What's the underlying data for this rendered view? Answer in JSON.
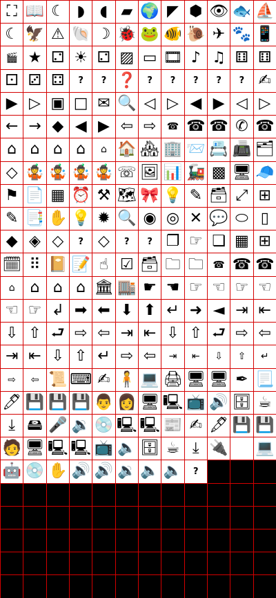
{
  "sheet": {
    "columns": 12,
    "rows": 26,
    "colors": {
      "grid_line": "#d40000",
      "cell_fill": "#ffffff",
      "empty_fill": "#000000",
      "icon_ink": "#000000"
    },
    "cells": [
      {
        "icon": "globe-maze-icon",
        "g": "⛶"
      },
      {
        "icon": "book-icon",
        "g": "📖"
      },
      {
        "icon": "moon-star-icon",
        "g": "☾"
      },
      {
        "icon": "south-america-icon",
        "g": "◗"
      },
      {
        "icon": "africa-icon",
        "g": "◖"
      },
      {
        "icon": "australia-icon",
        "g": "▰"
      },
      {
        "icon": "earth-globe-icon",
        "g": "🌍"
      },
      {
        "icon": "north-america-icon",
        "g": "◤"
      },
      {
        "icon": "europe-map-icon",
        "g": "⬢"
      },
      {
        "icon": "eye-icon",
        "g": "👁"
      },
      {
        "icon": "fish-hook-icon",
        "g": "🐟"
      },
      {
        "icon": "sailboat-icon",
        "g": "⛵"
      },
      {
        "icon": "night-sky-icon",
        "g": "☾"
      },
      {
        "icon": "eagle-icon",
        "g": "🦅"
      },
      {
        "icon": "warning-triangle-icon",
        "g": "⚠"
      },
      {
        "icon": "shell-icon",
        "g": "🐚"
      },
      {
        "icon": "moon-box-icon",
        "g": "☽"
      },
      {
        "icon": "bug-icon",
        "g": "🐞"
      },
      {
        "icon": "frog-icon",
        "g": "🐸"
      },
      {
        "icon": "fish-icon",
        "g": "🐠"
      },
      {
        "icon": "snail-icon",
        "g": "🐌"
      },
      {
        "icon": "jet-plane-icon",
        "g": "✈"
      },
      {
        "icon": "paw-print-icon",
        "g": "🐾"
      },
      {
        "icon": "phone-device-icon",
        "g": "📱"
      },
      {
        "icon": "show-clapper-icon",
        "g": "🎬",
        "cls": "small"
      },
      {
        "icon": "starfish-icon",
        "g": "★"
      },
      {
        "icon": "die-face-two-icon",
        "g": "⚁"
      },
      {
        "icon": "sun-face-icon",
        "g": "☀"
      },
      {
        "icon": "die-face-two-alt-icon",
        "g": "⚁"
      },
      {
        "icon": "die-shaded-icon",
        "g": "▨"
      },
      {
        "icon": "pill-button-icon",
        "g": "▭"
      },
      {
        "icon": "film-eye-icon",
        "g": "🎞"
      },
      {
        "icon": "music-box-icon",
        "g": "♪"
      },
      {
        "icon": "music-notes-icon",
        "g": "♫"
      },
      {
        "icon": "die-face-six-icon",
        "g": "⚅"
      },
      {
        "icon": "die-face-six-alt-icon",
        "g": "⚅"
      },
      {
        "icon": "die-face-one-icon",
        "g": "⚀"
      },
      {
        "icon": "die-face-three-icon",
        "g": "⚂"
      },
      {
        "icon": "die-face-four-icon",
        "g": "⚃"
      },
      {
        "icon": "question-circle-icon",
        "g": "?",
        "cls": "text-q"
      },
      {
        "icon": "help-book-icon",
        "g": "?",
        "cls": "text-q"
      },
      {
        "icon": "question-disc-icon",
        "g": "❓"
      },
      {
        "icon": "question-page-icon",
        "g": "?",
        "cls": "text-q"
      },
      {
        "icon": "question-stamp-icon",
        "g": "?",
        "cls": "text-q"
      },
      {
        "icon": "question-box-icon",
        "g": "?",
        "cls": "text-q"
      },
      {
        "icon": "question-box-bold-icon",
        "g": "?",
        "cls": "text-q"
      },
      {
        "icon": "question-script-icon",
        "g": "?",
        "cls": "text-q"
      },
      {
        "icon": "hand-writing-icon",
        "g": "✍"
      },
      {
        "icon": "play-filled-icon",
        "g": "▶"
      },
      {
        "icon": "play-outline-icon",
        "g": "▷"
      },
      {
        "icon": "small-square-icon",
        "g": "▣"
      },
      {
        "icon": "square-outline-icon",
        "g": "□"
      },
      {
        "icon": "envelope-x-icon",
        "g": "✉"
      },
      {
        "icon": "magnifier-list-icon",
        "g": "🔍"
      },
      {
        "icon": "arrow-left-thin-icon",
        "g": "◁"
      },
      {
        "icon": "arrow-right-thin-icon",
        "g": "▷"
      },
      {
        "icon": "triangle-left-icon",
        "g": "◀"
      },
      {
        "icon": "triangle-right-icon",
        "g": "▶"
      },
      {
        "icon": "triangle-left-outline-icon",
        "g": "◁"
      },
      {
        "icon": "triangle-right-outline-icon",
        "g": "▷"
      },
      {
        "icon": "arrow-left-icon",
        "g": "←"
      },
      {
        "icon": "arrow-right-icon",
        "g": "→"
      },
      {
        "icon": "question-diamond-small-icon",
        "g": "◆"
      },
      {
        "icon": "wedge-left-icon",
        "g": "◀"
      },
      {
        "icon": "wedge-right-icon",
        "g": "▶"
      },
      {
        "icon": "hollow-arrow-left-icon",
        "g": "⇦"
      },
      {
        "icon": "hollow-arrow-right-icon",
        "g": "⇨"
      },
      {
        "icon": "tiny-telephone-icon",
        "g": "☎",
        "cls": "small"
      },
      {
        "icon": "rotary-telephone-icon",
        "g": "☎"
      },
      {
        "icon": "desk-telephone-icon",
        "g": "☎"
      },
      {
        "icon": "phone-handset-icon",
        "g": "✆"
      },
      {
        "icon": "classic-telephone-icon",
        "g": "☎"
      },
      {
        "icon": "house-small-icon",
        "g": "⌂"
      },
      {
        "icon": "house-icon",
        "g": "⌂"
      },
      {
        "icon": "house-large-icon",
        "g": "⌂"
      },
      {
        "icon": "house-alt-icon",
        "g": "⌂"
      },
      {
        "icon": "house-tiny-icon",
        "g": "⌂",
        "cls": "small"
      },
      {
        "icon": "house-picture-icon",
        "g": "🏠"
      },
      {
        "icon": "house-windows-icon",
        "g": "🏘"
      },
      {
        "icon": "building-icon",
        "g": "🏢"
      },
      {
        "icon": "letter-stack-icon",
        "g": "📨"
      },
      {
        "icon": "rolodex-icon",
        "g": "📇"
      },
      {
        "icon": "fax-machine-icon",
        "g": "📠"
      },
      {
        "icon": "stacked-files-icon",
        "g": "🗂"
      },
      {
        "icon": "question-diamond-icon",
        "g": "◇"
      },
      {
        "icon": "juggler-icon",
        "g": "🤹"
      },
      {
        "icon": "juggler-two-icon",
        "g": "🤹"
      },
      {
        "icon": "juggler-three-icon",
        "g": "🤹"
      },
      {
        "icon": "juggler-four-icon",
        "g": "🤹"
      },
      {
        "icon": "phone-dial-icon",
        "g": "☏"
      },
      {
        "icon": "mountain-picture-icon",
        "g": "🖼"
      },
      {
        "icon": "bar-graph-icon",
        "g": "📊"
      },
      {
        "icon": "train-icon",
        "g": "🚂"
      },
      {
        "icon": "pattern-tile-icon",
        "g": "▩"
      },
      {
        "icon": "monitor-icon",
        "g": "🖥"
      },
      {
        "icon": "propeller-hat-icon",
        "g": "🧢"
      },
      {
        "icon": "crossing-sign-icon",
        "g": "⚑"
      },
      {
        "icon": "document-list-icon",
        "g": "📄"
      },
      {
        "icon": "checker-tile-icon",
        "g": "▦"
      },
      {
        "icon": "alarm-clock-icon",
        "g": "⏰"
      },
      {
        "icon": "tools-icon",
        "g": "⚒"
      },
      {
        "icon": "map-sheet-icon",
        "g": "🗺"
      },
      {
        "icon": "ribbon-folder-icon",
        "g": "🎀"
      },
      {
        "icon": "light-bulb-icon",
        "g": "💡"
      },
      {
        "icon": "drawing-tablet-icon",
        "g": "✎"
      },
      {
        "icon": "stacked-cards-icon",
        "g": "🗃"
      },
      {
        "icon": "expand-window-icon",
        "g": "⤢"
      },
      {
        "icon": "grid-window-icon",
        "g": "⊞"
      },
      {
        "icon": "pen-diamond-icon",
        "g": "✎"
      },
      {
        "icon": "papers-icon",
        "g": "📑"
      },
      {
        "icon": "hand-card-icon",
        "g": "✋"
      },
      {
        "icon": "bulb-square-icon",
        "g": "💡"
      },
      {
        "icon": "sun-burst-icon",
        "g": "✹"
      },
      {
        "icon": "magnifying-glass-icon",
        "g": "🔍"
      },
      {
        "icon": "eye-open-icon",
        "g": "◉"
      },
      {
        "icon": "eye-closed-icon",
        "g": "◎"
      },
      {
        "icon": "sparkle-x-icon",
        "g": "✕"
      },
      {
        "icon": "speech-bubble-icon",
        "g": "💬"
      },
      {
        "icon": "oval-bubble-icon",
        "g": "⬭"
      },
      {
        "icon": "blank-page-icon",
        "g": "▯"
      },
      {
        "icon": "question-diamond-black-icon",
        "g": "◆"
      },
      {
        "icon": "question-diamond-tile-icon",
        "g": "◈"
      },
      {
        "icon": "question-diamond-outline-icon",
        "g": "◇"
      },
      {
        "icon": "question-mark-icon",
        "g": "?",
        "cls": "text-q"
      },
      {
        "icon": "question-diamond-plain-icon",
        "g": "◇"
      },
      {
        "icon": "question-rounded-icon",
        "g": "?",
        "cls": "text-q"
      },
      {
        "icon": "question-square-icon",
        "g": "?",
        "cls": "text-q"
      },
      {
        "icon": "window-stack-icon",
        "g": "❐"
      },
      {
        "icon": "hand-pointing-page-icon",
        "g": "☞"
      },
      {
        "icon": "pages-stack-icon",
        "g": "❏"
      },
      {
        "icon": "spreadsheet-icon",
        "g": "▦"
      },
      {
        "icon": "window-grid-icon",
        "g": "⊞"
      },
      {
        "icon": "calendar-1988-icon",
        "g": "🗓"
      },
      {
        "icon": "dotted-grid-icon",
        "g": "⠿"
      },
      {
        "icon": "planner-book-icon",
        "g": "📔"
      },
      {
        "icon": "writing-pad-icon",
        "g": "📝"
      },
      {
        "icon": "hand-finger-icon",
        "g": "☝"
      },
      {
        "icon": "todo-list-icon",
        "g": "☑"
      },
      {
        "icon": "card-file-icon",
        "g": "🗃"
      },
      {
        "icon": "folder-tab-icon",
        "g": "🗀"
      },
      {
        "icon": "folder-tab-alt-icon",
        "g": "🗀"
      },
      {
        "icon": "phone-small-icon",
        "g": "☎",
        "cls": "small"
      },
      {
        "icon": "phone-medium-icon",
        "g": "☎"
      },
      {
        "icon": "phone-large-icon",
        "g": "☎"
      },
      {
        "icon": "hut-icon",
        "g": "⌂",
        "cls": "small"
      },
      {
        "icon": "cottage-icon",
        "g": "⌂"
      },
      {
        "icon": "home-icon",
        "g": "⌂"
      },
      {
        "icon": "mansion-icon",
        "g": "⌂"
      },
      {
        "icon": "bank-icon",
        "g": "🏛"
      },
      {
        "icon": "office-block-icon",
        "g": "🏬"
      },
      {
        "icon": "hand-point-right-icon",
        "g": "☛"
      },
      {
        "icon": "hand-point-left-icon",
        "g": "☚"
      },
      {
        "icon": "hand-point-right-two-icon",
        "g": "☞"
      },
      {
        "icon": "hand-point-left-two-icon",
        "g": "☜"
      },
      {
        "icon": "hand-point-right-three-icon",
        "g": "☞"
      },
      {
        "icon": "hand-point-left-three-icon",
        "g": "☜"
      },
      {
        "icon": "hand-point-left-small-icon",
        "g": "☜"
      },
      {
        "icon": "hand-point-right-small-icon",
        "g": "☞"
      },
      {
        "icon": "arrow-return-down-left-icon",
        "g": "↲"
      },
      {
        "icon": "bold-arrow-right-icon",
        "g": "➡"
      },
      {
        "icon": "bold-arrow-left-icon",
        "g": "⬅"
      },
      {
        "icon": "bold-arrow-down-icon",
        "g": "⬇"
      },
      {
        "icon": "bold-arrow-up-icon",
        "g": "⬆"
      },
      {
        "icon": "arrow-return-icon",
        "g": "↵"
      },
      {
        "icon": "small-arrow-right-icon",
        "g": "➜"
      },
      {
        "icon": "small-arrow-left-icon",
        "g": "◄"
      },
      {
        "icon": "arrow-to-bar-right-icon",
        "g": "⇥"
      },
      {
        "icon": "arrow-from-bar-left-icon",
        "g": "⇤"
      },
      {
        "icon": "outline-arrow-down-icon",
        "g": "⇩"
      },
      {
        "icon": "outline-arrow-up-icon",
        "g": "⇧"
      },
      {
        "icon": "outline-return-icon",
        "g": "⮐"
      },
      {
        "icon": "outline-arrow-right-icon",
        "g": "⇨"
      },
      {
        "icon": "outline-arrow-left-icon",
        "g": "⇦"
      },
      {
        "icon": "outline-to-bar-right-icon",
        "g": "⇥"
      },
      {
        "icon": "outline-from-bar-left-icon",
        "g": "⇤"
      },
      {
        "icon": "medium-arrow-down-icon",
        "g": "⇩"
      },
      {
        "icon": "medium-arrow-up-icon",
        "g": "⇧"
      },
      {
        "icon": "medium-return-icon",
        "g": "⮐"
      },
      {
        "icon": "medium-arrow-right-icon",
        "g": "⇨"
      },
      {
        "icon": "medium-arrow-left-icon",
        "g": "⇦"
      },
      {
        "icon": "thin-to-bar-right-icon",
        "g": "⇥"
      },
      {
        "icon": "thin-from-bar-left-icon",
        "g": "⇤"
      },
      {
        "icon": "thin-arrow-down-icon",
        "g": "⇩"
      },
      {
        "icon": "thin-arrow-up-icon",
        "g": "⇧"
      },
      {
        "icon": "thin-return-icon",
        "g": "↵"
      },
      {
        "icon": "thin-arrow-right-icon",
        "g": "⇨"
      },
      {
        "icon": "thin-arrow-left-icon",
        "g": "⇦"
      },
      {
        "icon": "tiny-to-bar-right-icon",
        "g": "⇥",
        "cls": "small"
      },
      {
        "icon": "tiny-from-bar-left-icon",
        "g": "⇤",
        "cls": "small"
      },
      {
        "icon": "tiny-arrow-down-icon",
        "g": "⇩",
        "cls": "small"
      },
      {
        "icon": "tiny-arrow-up-icon",
        "g": "⇧",
        "cls": "small"
      },
      {
        "icon": "tiny-return-icon",
        "g": "↵",
        "cls": "small"
      },
      {
        "icon": "mini-arrow-right-icon",
        "g": "⇨",
        "cls": "small"
      },
      {
        "icon": "mini-arrow-left-icon",
        "g": "⇦",
        "cls": "small"
      },
      {
        "icon": "scroll-hand-icon",
        "g": "📜"
      },
      {
        "icon": "keyboard-hand-icon",
        "g": "⌨"
      },
      {
        "icon": "hand-pen-page-icon",
        "g": "✍"
      },
      {
        "icon": "person-sign-icon",
        "g": "🧍"
      },
      {
        "icon": "computer-desk-icon",
        "g": "💻"
      },
      {
        "icon": "printer-icon",
        "g": "🖨"
      },
      {
        "icon": "mac-computer-keyboard-icon",
        "g": "🖥"
      },
      {
        "icon": "macintosh-icon",
        "g": "🖥"
      },
      {
        "icon": "hand-pen-diagonal-icon",
        "g": "✒"
      },
      {
        "icon": "document-lines-icon",
        "g": "📃"
      },
      {
        "icon": "pen-corner-icon",
        "g": "🖊"
      },
      {
        "icon": "floppy-disk-icon",
        "g": "💾"
      },
      {
        "icon": "floppy-shaded-icon",
        "g": "💾"
      },
      {
        "icon": "floppy-outline-icon",
        "g": "💾"
      },
      {
        "icon": "portrait-man-glasses-icon",
        "g": "👨"
      },
      {
        "icon": "portrait-woman-glasses-icon",
        "g": "👩"
      },
      {
        "icon": "mac-speaker-icon",
        "g": "🖥"
      },
      {
        "icon": "mac-box-icon",
        "g": "🖳"
      },
      {
        "icon": "television-icon",
        "g": "📺"
      },
      {
        "icon": "mac-sound-icon",
        "g": "🔊"
      },
      {
        "icon": "refrigerator-icon",
        "g": "🗄"
      },
      {
        "icon": "coffee-mug-icon",
        "g": "☕"
      },
      {
        "icon": "floppy-download-icon",
        "g": "⤓"
      },
      {
        "icon": "hard-drive-icon",
        "g": "🖴"
      },
      {
        "icon": "mic-monitor-icon",
        "g": "🎤"
      },
      {
        "icon": "mac-speaker-two-icon",
        "g": "🔉"
      },
      {
        "icon": "compact-disc-icon",
        "g": "💿"
      },
      {
        "icon": "mac-classic-icon",
        "g": "🖳"
      },
      {
        "icon": "mac-classic-two-icon",
        "g": "🖳"
      },
      {
        "icon": "newspaper-icon",
        "g": "📰"
      },
      {
        "icon": "hand-pen-card-icon",
        "g": "✍"
      },
      {
        "icon": "pen-document-icon",
        "g": "🖋"
      },
      {
        "icon": "disk-box-icon",
        "g": "💾"
      },
      {
        "icon": "disk-box-two-icon",
        "g": "💾"
      },
      {
        "icon": "portrait-man-icon",
        "g": "🧑"
      },
      {
        "icon": "monitor-speaker-icon",
        "g": "🖥"
      },
      {
        "icon": "mac-plain-icon",
        "g": "🖳"
      },
      {
        "icon": "mac-plain-two-icon",
        "g": "🖳"
      },
      {
        "icon": "tv-set-icon",
        "g": "📺"
      },
      {
        "icon": "mac-speaker-three-icon",
        "g": "🔈"
      },
      {
        "icon": "fridge-two-icon",
        "g": "🗄"
      },
      {
        "icon": "mug-two-icon",
        "g": "☕"
      },
      {
        "icon": "download-disk-icon",
        "g": "⤓"
      },
      {
        "icon": "audio-plug-icon",
        "g": "🔌"
      },
      {
        "icon": "blank-tile-icon",
        "g": ""
      },
      {
        "icon": "mic-laptop-icon",
        "g": "💻"
      },
      {
        "icon": "robot-icon",
        "g": "🤖"
      },
      {
        "icon": "disc-icon",
        "g": "💿"
      },
      {
        "icon": "stop-hand-icon",
        "g": "✋"
      },
      {
        "icon": "speaker-loud-icon",
        "g": "🔊"
      },
      {
        "icon": "speaker-loud-two-icon",
        "g": "🔊"
      },
      {
        "icon": "speaker-medium-icon",
        "g": "🔉"
      },
      {
        "icon": "speaker-low-icon",
        "g": "🔈"
      },
      {
        "icon": "speaker-quiet-icon",
        "g": "🔈"
      },
      {
        "icon": "question-text-icon",
        "g": "?",
        "cls": "text-q"
      }
    ]
  }
}
